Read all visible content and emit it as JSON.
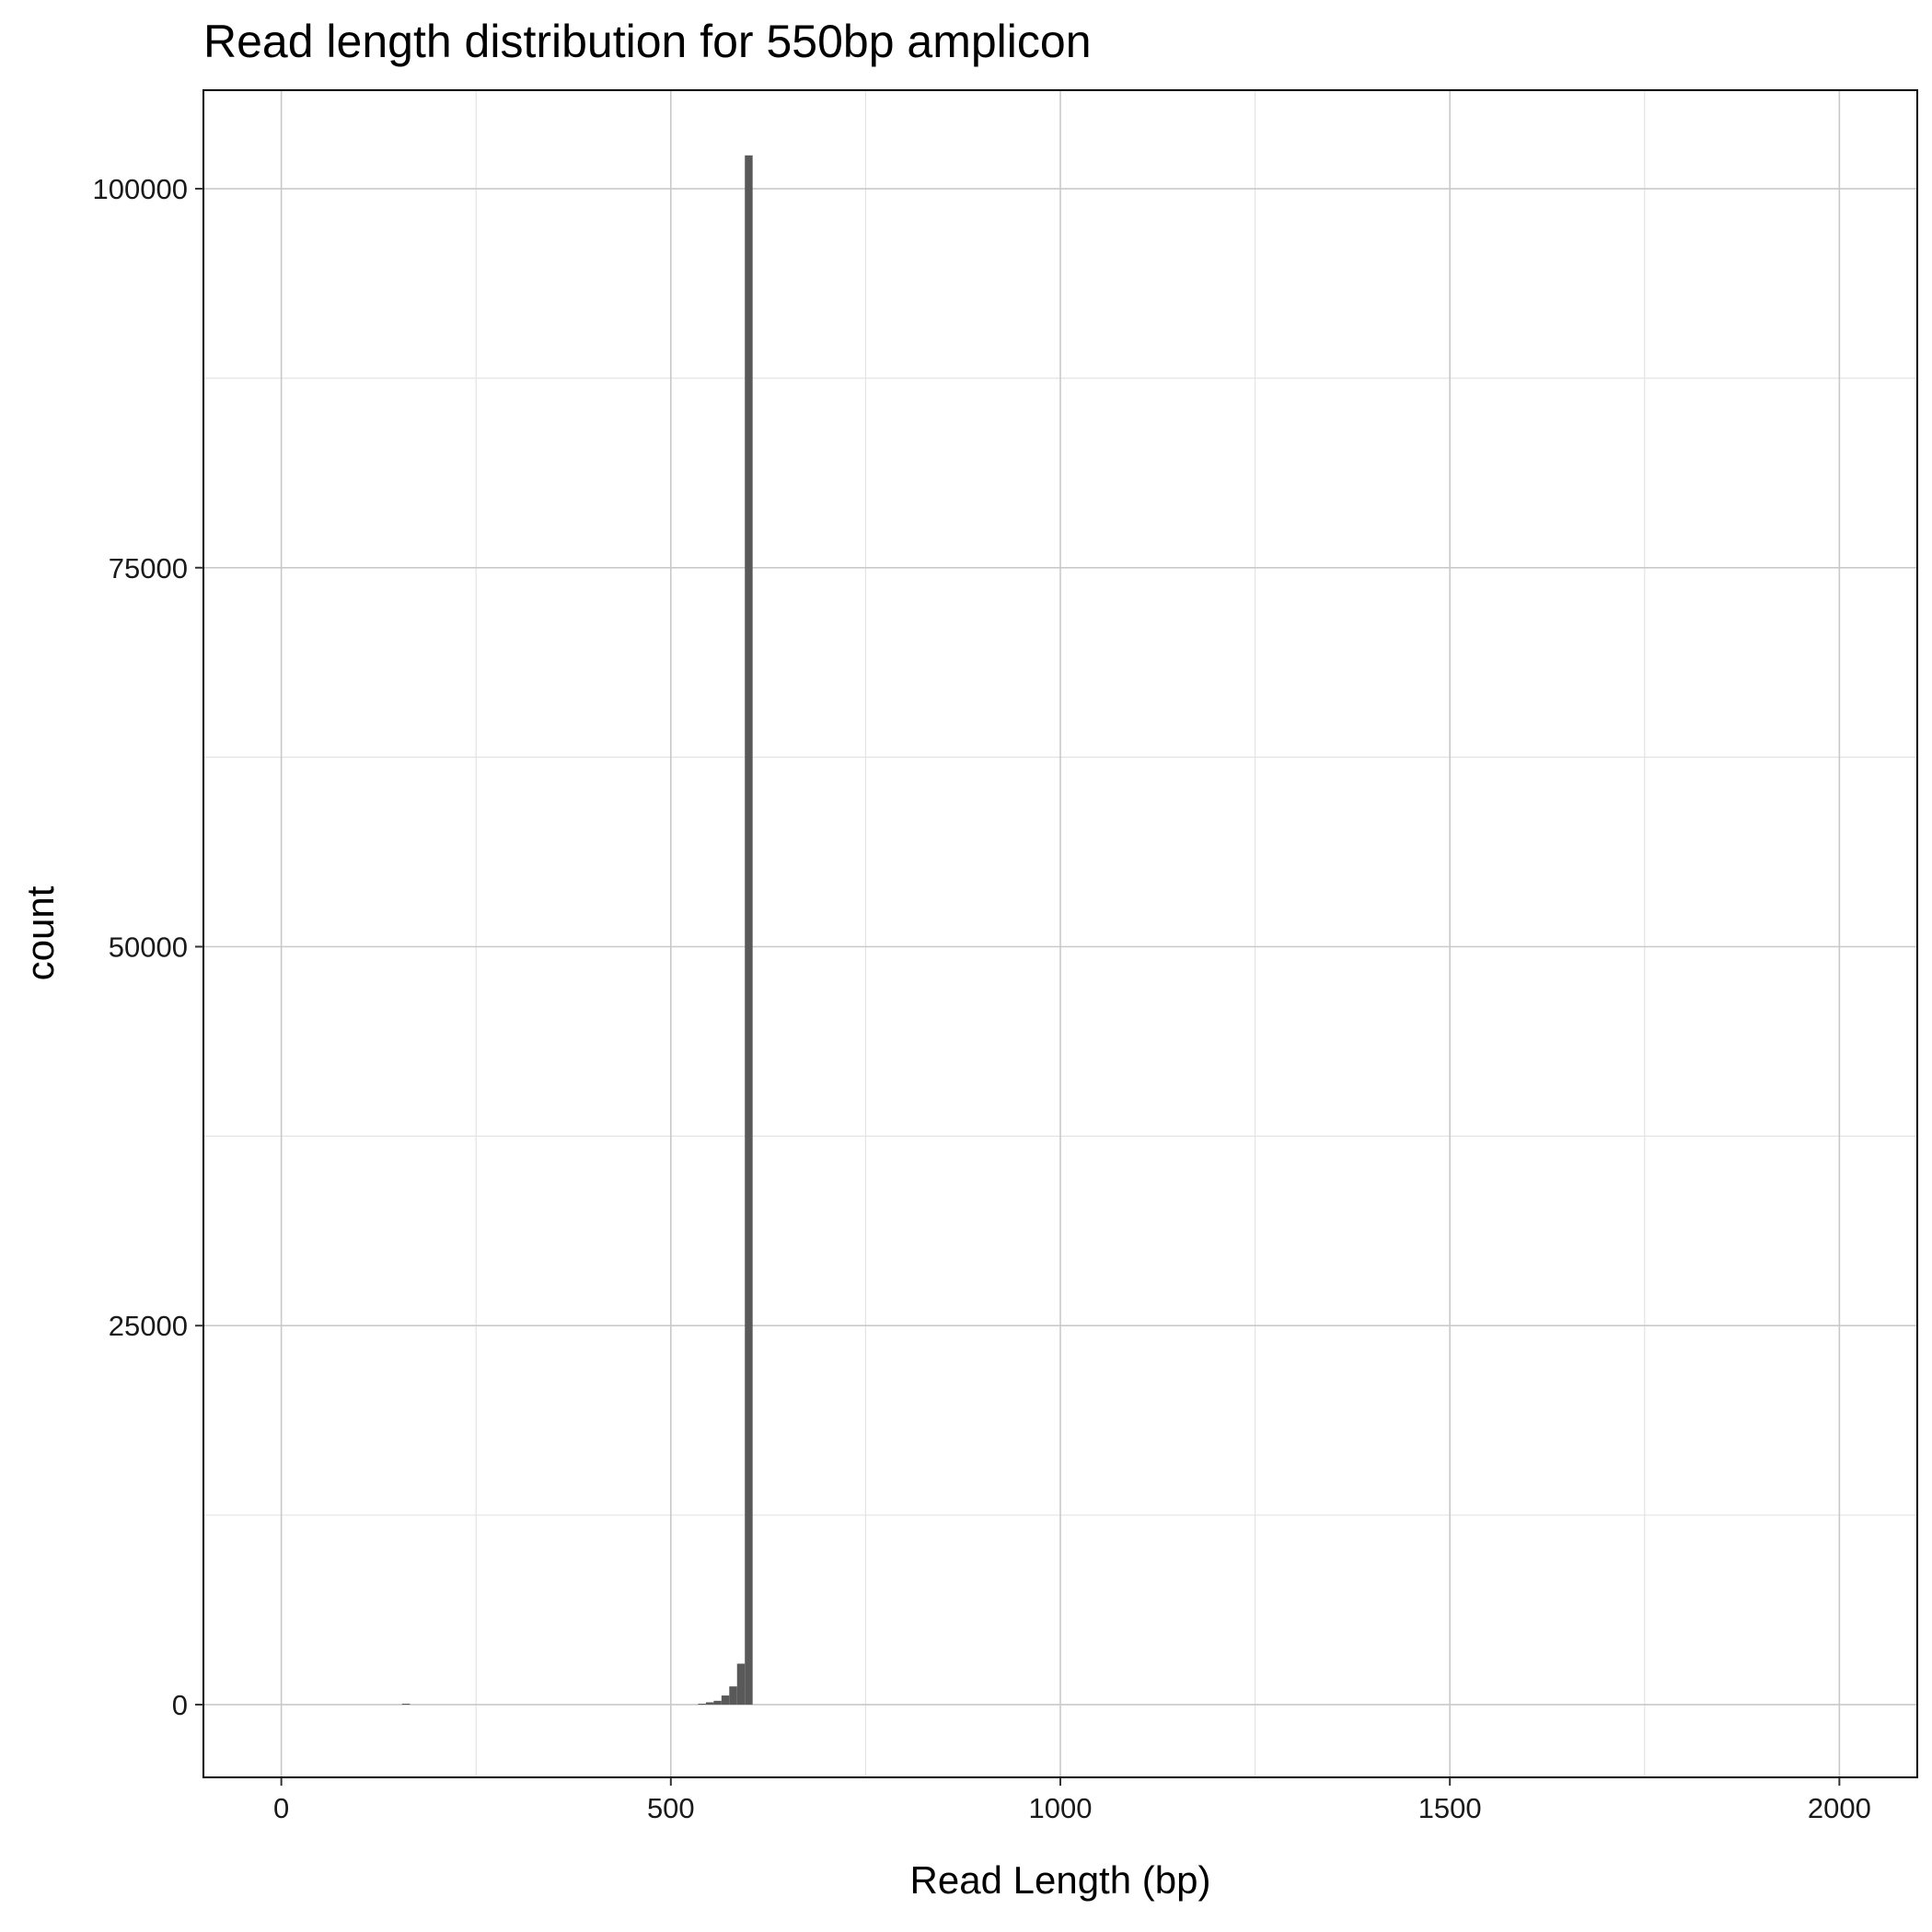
{
  "chart_data": {
    "type": "bar",
    "title": "Read length distribution for 550bp amplicon",
    "xlabel": "Read Length (bp)",
    "ylabel": "count",
    "xlim": [
      -100,
      2100
    ],
    "ylim": [
      -4800,
      106500
    ],
    "x_ticks": [
      0,
      500,
      1000,
      1500,
      2000
    ],
    "x_tick_labels": [
      "0",
      "500",
      "1000",
      "1500",
      "2000"
    ],
    "y_ticks": [
      0,
      25000,
      50000,
      75000,
      100000
    ],
    "y_tick_labels": [
      "0",
      "25000",
      "50000",
      "75000",
      "100000"
    ],
    "grid": true,
    "bin_width": 10,
    "bar_color": "#595959",
    "bins": [
      {
        "x": 160,
        "count": 60
      },
      {
        "x": 540,
        "count": 60
      },
      {
        "x": 550,
        "count": 150
      },
      {
        "x": 560,
        "count": 250
      },
      {
        "x": 570,
        "count": 600
      },
      {
        "x": 580,
        "count": 1200
      },
      {
        "x": 590,
        "count": 2700
      },
      {
        "x": 600,
        "count": 102200
      }
    ]
  }
}
